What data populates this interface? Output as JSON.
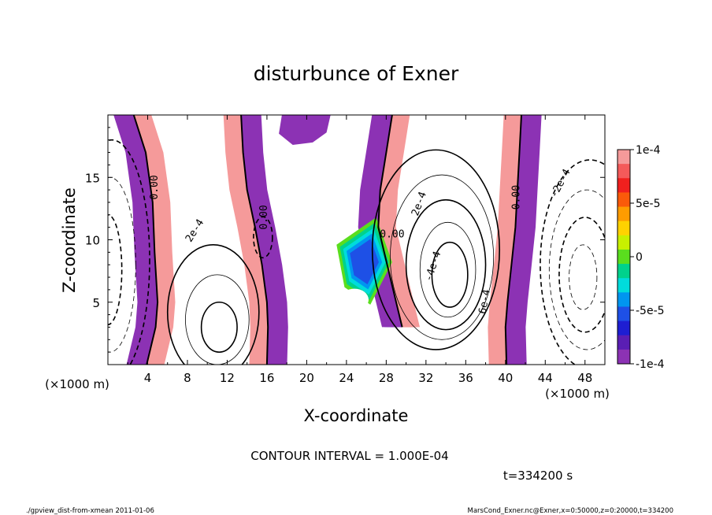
{
  "chart_data": {
    "type": "contour",
    "title": "disturbunce of Exner",
    "xlabel": "X-coordinate",
    "ylabel": "Z-coordinate",
    "x_unit": "(×1000 m)",
    "xlim": [
      0,
      50
    ],
    "ylim": [
      0,
      20
    ],
    "x_ticks": [
      4,
      8,
      12,
      16,
      20,
      24,
      28,
      32,
      36,
      40,
      44,
      48
    ],
    "y_ticks": [
      5,
      10,
      15
    ],
    "contour_interval": "CONTOUR INTERVAL = 1.000E-04",
    "time_label": "t=334200 s",
    "contour_labels": [
      "0.00",
      "0.00",
      "0.00",
      "0.00",
      "2e-4",
      "2e-4",
      "-2e-4",
      "-4e-4",
      "6e-4"
    ],
    "colorbar": {
      "ticks": [
        "1e-4",
        "5e-5",
        "0",
        "-5e-5",
        "-1e-4"
      ],
      "tick_values": [
        0.0001,
        5e-05,
        0,
        -5e-05,
        -0.0001
      ],
      "colors": [
        "#f59a9a",
        "#f45a5a",
        "#f0201e",
        "#fa5a0a",
        "#ff9c00",
        "#ffd200",
        "#c8f000",
        "#5ade1e",
        "#00d28c",
        "#00dcdc",
        "#0096f0",
        "#1e50e6",
        "#1e1ed2",
        "#5a1eb4",
        "#8c32b4"
      ]
    },
    "bands": [
      {
        "name": "left-front",
        "x": [
          2.6,
          3.8,
          4.5,
          4.7,
          5.0,
          4.8,
          4.2,
          3.9
        ],
        "z": [
          20,
          17,
          13,
          9,
          5,
          3,
          1,
          0
        ],
        "left_sign": "neg"
      },
      {
        "name": "mid-left-front",
        "x": [
          13.4,
          13.6,
          14.0,
          14.8,
          15.5,
          16.0,
          16.1,
          16.0
        ],
        "z": [
          20,
          17,
          14,
          11,
          8,
          5,
          3,
          0
        ],
        "left_sign": "pos"
      },
      {
        "name": "center-front",
        "x": [
          28.6,
          28.0,
          27.4,
          27.2,
          27.8,
          28.4,
          29.0,
          29.6
        ],
        "z": [
          20,
          17,
          14,
          11,
          9,
          7,
          5,
          3
        ],
        "left_sign": "neg"
      },
      {
        "name": "right-front",
        "x": [
          41.6,
          41.4,
          41.2,
          41.0,
          40.6,
          40.2,
          40.0,
          40.1
        ],
        "z": [
          20,
          17,
          14,
          11,
          8,
          5,
          3,
          0
        ],
        "left_sign": "pos"
      }
    ]
  },
  "footer": {
    "left": "./gpview_dist-from-xmean  2011-01-06",
    "right": "MarsCond_Exner.nc@Exner,x=0:50000,z=0:20000,t=334200"
  }
}
